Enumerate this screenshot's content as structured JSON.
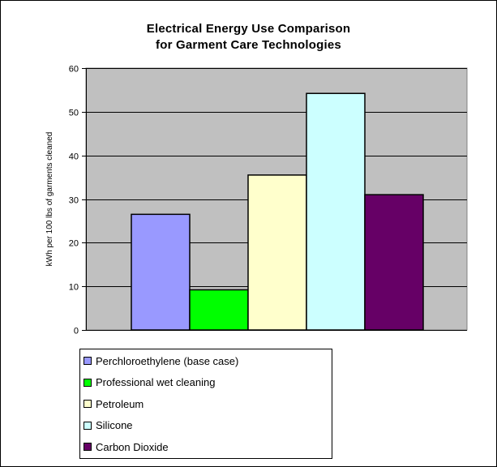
{
  "chart_data": {
    "type": "bar",
    "title_lines": [
      "Electrical Energy Use Comparison",
      "for Garment Care Technologies"
    ],
    "ylabel": "kWh per 100 lbs of garments cleaned",
    "xlabel": "",
    "ylim": [
      0,
      60
    ],
    "yticks": [
      0,
      10,
      20,
      30,
      40,
      50,
      60
    ],
    "grid": true,
    "legend_position": "bottom",
    "plot_background": "#c0c0c0",
    "series": [
      {
        "name": "Perchloroethylene (base case)",
        "value": 26.5,
        "color": "#9999ff"
      },
      {
        "name": "Professional wet cleaning",
        "value": 9.2,
        "color": "#00ff00"
      },
      {
        "name": "Petroleum",
        "value": 35.5,
        "color": "#ffffcc"
      },
      {
        "name": "Silicone",
        "value": 54.2,
        "color": "#ccffff"
      },
      {
        "name": "Carbon Dioxide",
        "value": 31.0,
        "color": "#660066"
      }
    ]
  }
}
